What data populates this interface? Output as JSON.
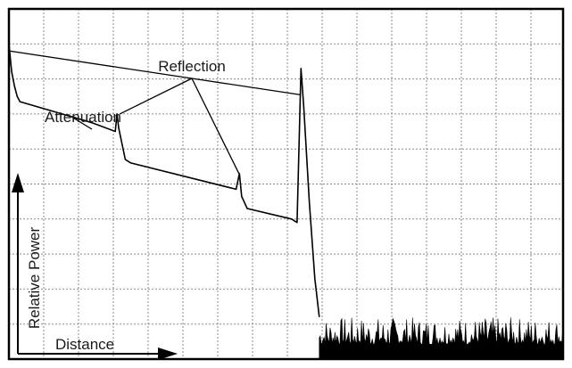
{
  "chart_data": {
    "type": "line",
    "title": "",
    "xlabel": "Distance",
    "ylabel": "Relative Power",
    "grid": true,
    "annotations": {
      "reflection": "Reflection",
      "attenuation": "Attenuation"
    },
    "xlim": [
      0,
      10
    ],
    "ylim": [
      0,
      10
    ],
    "series": [
      {
        "values": [
          [
            0.0,
            9.0
          ],
          [
            0.05,
            8.2
          ],
          [
            0.1,
            7.8
          ],
          [
            0.15,
            7.5
          ],
          [
            0.2,
            7.35
          ],
          [
            1.5,
            6.75
          ],
          [
            1.92,
            6.5
          ],
          [
            1.95,
            7.0
          ],
          [
            1.98,
            6.6
          ],
          [
            2.1,
            5.7
          ],
          [
            2.2,
            5.6
          ],
          [
            4.1,
            4.85
          ],
          [
            4.16,
            5.3
          ],
          [
            4.2,
            4.65
          ],
          [
            4.3,
            4.3
          ],
          [
            5.1,
            4.0
          ],
          [
            5.2,
            3.9
          ],
          [
            5.27,
            8.3
          ],
          [
            5.32,
            7.2
          ],
          [
            5.42,
            4.5
          ],
          [
            5.52,
            2.3
          ],
          [
            5.6,
            1.2
          ]
        ]
      }
    ],
    "noise_floor": {
      "x_start": 5.6,
      "x_end": 10.0,
      "level": [
        0.0,
        1.2
      ]
    },
    "callouts": {
      "reflection_targets": [
        [
          0.0,
          8.8
        ],
        [
          2.0,
          7.0
        ],
        [
          4.15,
          5.3
        ],
        [
          5.25,
          7.55
        ]
      ],
      "attenuation_target": [
        1.15,
        6.9
      ]
    }
  }
}
